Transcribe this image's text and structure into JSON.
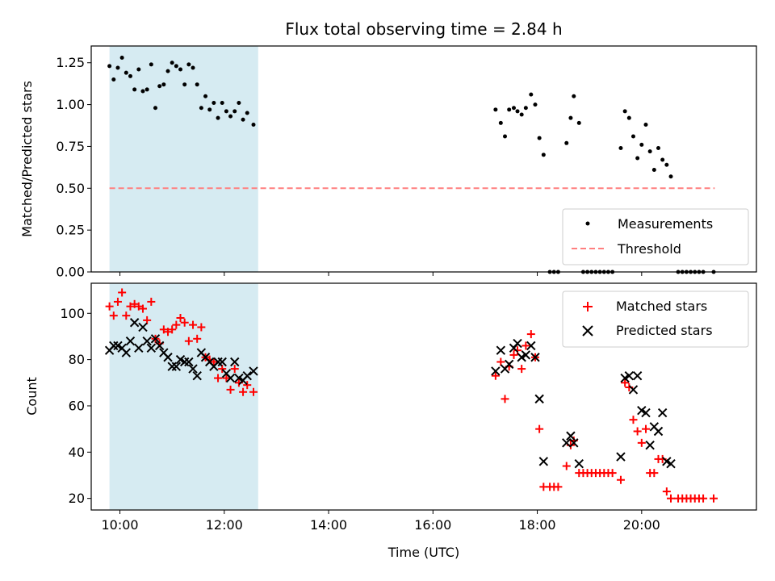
{
  "chart_data": [
    {
      "type": "scatter",
      "title": "Flux total observing time = 2.84 h",
      "xlabel": "",
      "ylabel": "Matched/Predicted stars",
      "xlim": [
        9.45,
        22.2
      ],
      "ylim": [
        0.0,
        1.35
      ],
      "yticks": [
        0.0,
        0.25,
        0.5,
        0.75,
        1.0,
        1.25
      ],
      "ytick_labels": [
        "0.00",
        "0.25",
        "0.50",
        "0.75",
        "1.00",
        "1.25"
      ],
      "xticks": [
        10,
        12,
        14,
        16,
        18,
        20
      ],
      "shaded_region": [
        9.8,
        12.65
      ],
      "shade_color": "#add8e6",
      "threshold": {
        "value": 0.5,
        "x_range": [
          9.8,
          21.4
        ],
        "color": "#ff7f7f"
      },
      "legend": {
        "placement": "lower-right",
        "entries": [
          "Measurements",
          "Threshold"
        ]
      },
      "series": [
        {
          "name": "Measurements",
          "color": "#000000",
          "points": [
            [
              9.8,
              1.23
            ],
            [
              9.88,
              1.15
            ],
            [
              9.96,
              1.22
            ],
            [
              10.04,
              1.28
            ],
            [
              10.12,
              1.19
            ],
            [
              10.2,
              1.17
            ],
            [
              10.28,
              1.09
            ],
            [
              10.36,
              1.21
            ],
            [
              10.44,
              1.08
            ],
            [
              10.52,
              1.09
            ],
            [
              10.6,
              1.24
            ],
            [
              10.68,
              0.98
            ],
            [
              10.76,
              1.11
            ],
            [
              10.84,
              1.12
            ],
            [
              10.92,
              1.2
            ],
            [
              11.0,
              1.25
            ],
            [
              11.08,
              1.23
            ],
            [
              11.16,
              1.21
            ],
            [
              11.24,
              1.12
            ],
            [
              11.32,
              1.24
            ],
            [
              11.4,
              1.22
            ],
            [
              11.48,
              1.12
            ],
            [
              11.56,
              0.98
            ],
            [
              11.64,
              1.05
            ],
            [
              11.72,
              0.97
            ],
            [
              11.8,
              1.01
            ],
            [
              11.88,
              0.92
            ],
            [
              11.96,
              1.01
            ],
            [
              12.04,
              0.96
            ],
            [
              12.12,
              0.93
            ],
            [
              12.2,
              0.96
            ],
            [
              12.28,
              1.01
            ],
            [
              12.36,
              0.91
            ],
            [
              12.44,
              0.95
            ],
            [
              12.56,
              0.88
            ],
            [
              17.2,
              0.97
            ],
            [
              17.3,
              0.89
            ],
            [
              17.38,
              0.81
            ],
            [
              17.46,
              0.97
            ],
            [
              17.55,
              0.98
            ],
            [
              17.62,
              0.96
            ],
            [
              17.7,
              0.94
            ],
            [
              17.78,
              0.98
            ],
            [
              17.88,
              1.06
            ],
            [
              17.96,
              1.0
            ],
            [
              18.04,
              0.8
            ],
            [
              18.12,
              0.7
            ],
            [
              18.24,
              0.0
            ],
            [
              18.32,
              0.0
            ],
            [
              18.4,
              0.0
            ],
            [
              18.56,
              0.77
            ],
            [
              18.64,
              0.92
            ],
            [
              18.7,
              1.05
            ],
            [
              18.8,
              0.89
            ],
            [
              18.88,
              0.0
            ],
            [
              18.96,
              0.0
            ],
            [
              19.04,
              0.0
            ],
            [
              19.12,
              0.0
            ],
            [
              19.2,
              0.0
            ],
            [
              19.28,
              0.0
            ],
            [
              19.36,
              0.0
            ],
            [
              19.44,
              0.0
            ],
            [
              19.6,
              0.74
            ],
            [
              19.68,
              0.96
            ],
            [
              19.76,
              0.92
            ],
            [
              19.84,
              0.81
            ],
            [
              19.92,
              0.68
            ],
            [
              20.0,
              0.76
            ],
            [
              20.08,
              0.88
            ],
            [
              20.16,
              0.72
            ],
            [
              20.24,
              0.61
            ],
            [
              20.32,
              0.74
            ],
            [
              20.4,
              0.67
            ],
            [
              20.48,
              0.64
            ],
            [
              20.56,
              0.57
            ],
            [
              20.7,
              0.0
            ],
            [
              20.78,
              0.0
            ],
            [
              20.86,
              0.0
            ],
            [
              20.94,
              0.0
            ],
            [
              21.02,
              0.0
            ],
            [
              21.1,
              0.0
            ],
            [
              21.18,
              0.0
            ],
            [
              21.38,
              0.0
            ]
          ]
        }
      ]
    },
    {
      "type": "scatter",
      "title": "",
      "xlabel": "Time (UTC)",
      "ylabel": "Count",
      "xlim": [
        9.45,
        22.2
      ],
      "ylim": [
        15,
        113
      ],
      "yticks": [
        20,
        40,
        60,
        80,
        100
      ],
      "ytick_labels": [
        "20",
        "40",
        "60",
        "80",
        "100"
      ],
      "xticks": [
        10,
        12,
        14,
        16,
        18,
        20
      ],
      "xtick_labels": [
        "10:00",
        "12:00",
        "14:00",
        "16:00",
        "18:00",
        "20:00"
      ],
      "shaded_region": [
        9.8,
        12.65
      ],
      "shade_color": "#add8e6",
      "legend": {
        "placement": "top-right",
        "entries": [
          "Matched stars",
          "Predicted stars"
        ]
      },
      "series": [
        {
          "name": "Matched stars",
          "marker": "plus",
          "color": "#ff0000",
          "points": [
            [
              9.8,
              103
            ],
            [
              9.88,
              99
            ],
            [
              9.96,
              105
            ],
            [
              10.04,
              109
            ],
            [
              10.12,
              99
            ],
            [
              10.2,
              103
            ],
            [
              10.28,
              104
            ],
            [
              10.36,
              103
            ],
            [
              10.44,
              102
            ],
            [
              10.52,
              97
            ],
            [
              10.6,
              105
            ],
            [
              10.68,
              89
            ],
            [
              10.76,
              87
            ],
            [
              10.84,
              93
            ],
            [
              10.92,
              92
            ],
            [
              11.0,
              93
            ],
            [
              11.08,
              95
            ],
            [
              11.16,
              98
            ],
            [
              11.24,
              96
            ],
            [
              11.32,
              88
            ],
            [
              11.4,
              95
            ],
            [
              11.48,
              89
            ],
            [
              11.56,
              94
            ],
            [
              11.64,
              81
            ],
            [
              11.72,
              80
            ],
            [
              11.8,
              79
            ],
            [
              11.88,
              72
            ],
            [
              11.96,
              76
            ],
            [
              12.04,
              72
            ],
            [
              12.12,
              67
            ],
            [
              12.2,
              76
            ],
            [
              12.28,
              70
            ],
            [
              12.36,
              66
            ],
            [
              12.44,
              69
            ],
            [
              12.56,
              66
            ],
            [
              17.2,
              73
            ],
            [
              17.3,
              79
            ],
            [
              17.38,
              63
            ],
            [
              17.46,
              77
            ],
            [
              17.55,
              82
            ],
            [
              17.62,
              84
            ],
            [
              17.7,
              76
            ],
            [
              17.78,
              86
            ],
            [
              17.88,
              91
            ],
            [
              17.96,
              81
            ],
            [
              18.04,
              50
            ],
            [
              18.12,
              25
            ],
            [
              18.24,
              25
            ],
            [
              18.32,
              25
            ],
            [
              18.4,
              25
            ],
            [
              18.56,
              34
            ],
            [
              18.64,
              43
            ],
            [
              18.7,
              45
            ],
            [
              18.8,
              31
            ],
            [
              18.88,
              31
            ],
            [
              18.96,
              31
            ],
            [
              19.04,
              31
            ],
            [
              19.12,
              31
            ],
            [
              19.2,
              31
            ],
            [
              19.28,
              31
            ],
            [
              19.36,
              31
            ],
            [
              19.44,
              31
            ],
            [
              19.6,
              28
            ],
            [
              19.68,
              70
            ],
            [
              19.76,
              68
            ],
            [
              19.84,
              54
            ],
            [
              19.92,
              49
            ],
            [
              20.0,
              44
            ],
            [
              20.08,
              50
            ],
            [
              20.16,
              31
            ],
            [
              20.24,
              31
            ],
            [
              20.32,
              37
            ],
            [
              20.4,
              37
            ],
            [
              20.48,
              23
            ],
            [
              20.56,
              20
            ],
            [
              20.7,
              20
            ],
            [
              20.78,
              20
            ],
            [
              20.86,
              20
            ],
            [
              20.94,
              20
            ],
            [
              21.02,
              20
            ],
            [
              21.1,
              20
            ],
            [
              21.18,
              20
            ],
            [
              21.38,
              20
            ]
          ]
        },
        {
          "name": "Predicted stars",
          "marker": "x",
          "color": "#000000",
          "points": [
            [
              9.8,
              84
            ],
            [
              9.88,
              86
            ],
            [
              9.96,
              86
            ],
            [
              10.04,
              85
            ],
            [
              10.12,
              83
            ],
            [
              10.2,
              88
            ],
            [
              10.28,
              96
            ],
            [
              10.36,
              85
            ],
            [
              10.44,
              94
            ],
            [
              10.52,
              88
            ],
            [
              10.6,
              85
            ],
            [
              10.68,
              89
            ],
            [
              10.76,
              86
            ],
            [
              10.84,
              83
            ],
            [
              10.92,
              81
            ],
            [
              11.0,
              77
            ],
            [
              11.08,
              77
            ],
            [
              11.16,
              80
            ],
            [
              11.24,
              79
            ],
            [
              11.32,
              79
            ],
            [
              11.4,
              76
            ],
            [
              11.48,
              73
            ],
            [
              11.56,
              83
            ],
            [
              11.64,
              81
            ],
            [
              11.72,
              79
            ],
            [
              11.8,
              77
            ],
            [
              11.88,
              79
            ],
            [
              11.96,
              79
            ],
            [
              12.04,
              74
            ],
            [
              12.12,
              72
            ],
            [
              12.2,
              79
            ],
            [
              12.28,
              72
            ],
            [
              12.36,
              71
            ],
            [
              12.44,
              73
            ],
            [
              12.56,
              75
            ],
            [
              17.2,
              75
            ],
            [
              17.3,
              84
            ],
            [
              17.38,
              76
            ],
            [
              17.46,
              78
            ],
            [
              17.55,
              85
            ],
            [
              17.62,
              87
            ],
            [
              17.7,
              81
            ],
            [
              17.78,
              82
            ],
            [
              17.88,
              86
            ],
            [
              17.96,
              81
            ],
            [
              18.04,
              63
            ],
            [
              18.12,
              36
            ],
            [
              18.56,
              44
            ],
            [
              18.64,
              47
            ],
            [
              18.7,
              44
            ],
            [
              18.8,
              35
            ],
            [
              19.6,
              38
            ],
            [
              19.68,
              72
            ],
            [
              19.76,
              73
            ],
            [
              19.84,
              67
            ],
            [
              19.92,
              73
            ],
            [
              20.0,
              58
            ],
            [
              20.08,
              57
            ],
            [
              20.16,
              43
            ],
            [
              20.24,
              51
            ],
            [
              20.32,
              49
            ],
            [
              20.4,
              57
            ],
            [
              20.48,
              36
            ],
            [
              20.56,
              35
            ]
          ]
        }
      ]
    }
  ]
}
